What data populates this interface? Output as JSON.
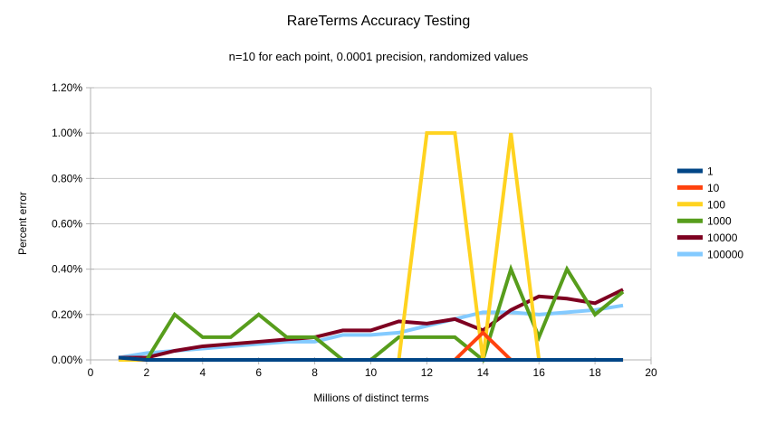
{
  "chart_data": {
    "type": "line",
    "title": "RareTerms Accuracy Testing",
    "subtitle": "n=10 for each point, 0.0001 precision, randomized values",
    "xlabel": "Millions of distinct terms",
    "ylabel": "Percent error",
    "xlim": [
      0,
      20
    ],
    "ylim": [
      0,
      1.2
    ],
    "grid": "horizontal",
    "legend_position": "right",
    "x_ticks": [
      {
        "v": 0,
        "label": "0"
      },
      {
        "v": 2,
        "label": "2"
      },
      {
        "v": 4,
        "label": "4"
      },
      {
        "v": 6,
        "label": "6"
      },
      {
        "v": 8,
        "label": "8"
      },
      {
        "v": 10,
        "label": "10"
      },
      {
        "v": 12,
        "label": "12"
      },
      {
        "v": 14,
        "label": "14"
      },
      {
        "v": 16,
        "label": "16"
      },
      {
        "v": 18,
        "label": "18"
      },
      {
        "v": 20,
        "label": "20"
      }
    ],
    "y_ticks": [
      {
        "v": 0.0,
        "label": "0.00%"
      },
      {
        "v": 0.2,
        "label": "0.20%"
      },
      {
        "v": 0.4,
        "label": "0.40%"
      },
      {
        "v": 0.6,
        "label": "0.60%"
      },
      {
        "v": 0.8,
        "label": "0.80%"
      },
      {
        "v": 1.0,
        "label": "1.00%"
      },
      {
        "v": 1.2,
        "label": "1.20%"
      }
    ],
    "x": [
      1,
      2,
      3,
      4,
      5,
      6,
      7,
      8,
      9,
      10,
      11,
      12,
      13,
      14,
      15,
      16,
      17,
      18,
      19
    ],
    "series": [
      {
        "name": "1",
        "color": "#004586",
        "values": [
          0.01,
          0,
          0,
          0,
          0,
          0,
          0,
          0,
          0,
          0,
          0,
          0,
          0,
          0,
          0,
          0,
          0,
          0,
          0
        ]
      },
      {
        "name": "10",
        "color": "#ff420e",
        "values": [
          0.01,
          0,
          0,
          0,
          0,
          0,
          0,
          0,
          0,
          0,
          0,
          0,
          0,
          0.12,
          0,
          0,
          0,
          0,
          0
        ]
      },
      {
        "name": "100",
        "color": "#ffd320",
        "values": [
          0,
          0,
          0,
          0,
          0,
          0,
          0,
          0,
          0,
          0,
          0,
          1.0,
          1.0,
          0,
          1.0,
          0,
          0,
          0,
          0
        ]
      },
      {
        "name": "1000",
        "color": "#579d1c",
        "values": [
          0,
          0,
          0.2,
          0.1,
          0.1,
          0.2,
          0.1,
          0.1,
          0,
          0,
          0.1,
          0.1,
          0.1,
          0,
          0.4,
          0.1,
          0.4,
          0.2,
          0.3
        ]
      },
      {
        "name": "10000",
        "color": "#7e0021",
        "values": [
          0.01,
          0.01,
          0.04,
          0.06,
          0.07,
          0.08,
          0.09,
          0.1,
          0.13,
          0.13,
          0.17,
          0.16,
          0.18,
          0.13,
          0.22,
          0.28,
          0.27,
          0.25,
          0.31
        ]
      },
      {
        "name": "100000",
        "color": "#83caff",
        "values": [
          0.01,
          0.03,
          0.04,
          0.05,
          0.06,
          0.07,
          0.08,
          0.08,
          0.11,
          0.11,
          0.12,
          0.15,
          0.18,
          0.21,
          0.21,
          0.2,
          0.21,
          0.22,
          0.24
        ]
      }
    ]
  },
  "colors": {
    "grid": "#c8c8c8",
    "axis": "#b3b3b3",
    "text": "#000000",
    "background": "#ffffff"
  }
}
